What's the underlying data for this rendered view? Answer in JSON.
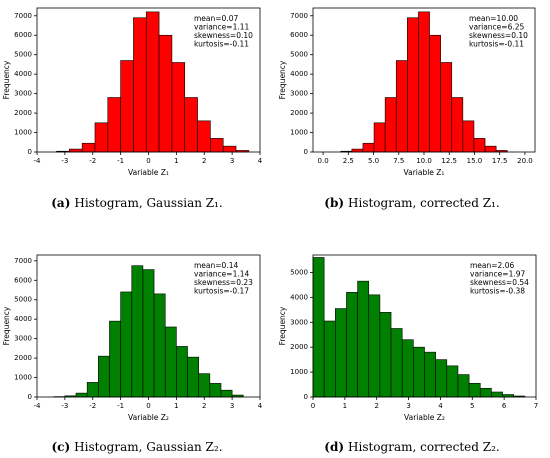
{
  "chart_data": [
    {
      "type": "histogram",
      "color": "#ff0000",
      "xlabel": "Variable Z₁",
      "ylabel": "Frequency",
      "caption_label": "(a)",
      "caption": "Histogram, Gaussian Z₁.",
      "annotations": [
        "mean=0.07",
        "variance=1.11",
        "skewness=0.10",
        "kurtosis=-0.11"
      ],
      "bins": [
        -3.3,
        -2.84,
        -2.38,
        -1.92,
        -1.46,
        -1.0,
        -0.54,
        -0.08,
        0.38,
        0.84,
        1.3,
        1.76,
        2.22,
        2.68,
        3.14,
        3.6
      ],
      "counts": [
        40,
        150,
        450,
        1500,
        2800,
        4700,
        6900,
        7200,
        6000,
        4600,
        2800,
        1600,
        700,
        300,
        80
      ],
      "xlim": [
        -4,
        4
      ],
      "xticks": [
        -4,
        -3,
        -2,
        -1,
        0,
        1,
        2,
        3,
        4
      ],
      "ylim": [
        0,
        7400
      ],
      "yticks": [
        0,
        1000,
        2000,
        3000,
        4000,
        5000,
        6000,
        7000
      ]
    },
    {
      "type": "histogram",
      "color": "#ff0000",
      "xlabel": "Variable Z₁",
      "ylabel": "Frequency",
      "caption_label": "(b)",
      "caption": "Histogram, corrected Z₁.",
      "annotations": [
        "mean=10.00",
        "variance=6.25",
        "skewness=0.10",
        "kurtosis=-0.11"
      ],
      "bins": [
        1.75,
        2.85,
        3.95,
        5.05,
        6.15,
        7.25,
        8.35,
        9.45,
        10.55,
        11.65,
        12.75,
        13.85,
        14.95,
        16.05,
        17.15,
        18.25
      ],
      "counts": [
        40,
        150,
        450,
        1500,
        2800,
        4700,
        6900,
        7200,
        6000,
        4600,
        2800,
        1600,
        700,
        300,
        80
      ],
      "xlim": [
        -1,
        21
      ],
      "xticks": [
        {
          "value": 0,
          "label": "0.0"
        },
        2.5,
        {
          "value": 5,
          "label": "5.0"
        },
        7.5,
        {
          "value": 10,
          "label": "10.0"
        },
        12.5,
        {
          "value": 15,
          "label": "15.0"
        },
        17.5,
        {
          "value": 20,
          "label": "20.0"
        }
      ],
      "ylim": [
        0,
        7400
      ],
      "yticks": [
        0,
        1000,
        2000,
        3000,
        4000,
        5000,
        6000,
        7000
      ]
    },
    {
      "type": "histogram",
      "color": "#008000",
      "xlabel": "Variable Z₂",
      "ylabel": "Frequency",
      "caption_label": "(c)",
      "caption": "Histogram, Gaussian Z₂.",
      "annotations": [
        "mean=0.14",
        "variance=1.14",
        "skewness=0.23",
        "kurtosis=-0.17"
      ],
      "bins": [
        -3.4,
        -3.0,
        -2.6,
        -2.2,
        -1.8,
        -1.4,
        -1.0,
        -0.6,
        -0.2,
        0.2,
        0.6,
        1.0,
        1.4,
        1.8,
        2.2,
        2.6,
        3.0,
        3.4
      ],
      "counts": [
        20,
        60,
        200,
        750,
        2100,
        3900,
        5400,
        6750,
        6550,
        5300,
        3600,
        2600,
        2050,
        1200,
        700,
        350,
        100
      ],
      "xlim": [
        -4,
        4
      ],
      "xticks": [
        -4,
        -3,
        -2,
        -1,
        0,
        1,
        2,
        3,
        4
      ],
      "ylim": [
        0,
        7300
      ],
      "yticks": [
        0,
        1000,
        2000,
        3000,
        4000,
        5000,
        6000,
        7000
      ]
    },
    {
      "type": "histogram",
      "color": "#008000",
      "xlabel": "Variable Z₂",
      "ylabel": "Frequency",
      "caption_label": "(d)",
      "caption": "Histogram, corrected Z₂.",
      "annotations": [
        "mean=2.06",
        "variance=1.97",
        "skewness=0.54",
        "kurtosis=-0.38"
      ],
      "bins": [
        0,
        0.35,
        0.7,
        1.05,
        1.4,
        1.75,
        2.1,
        2.45,
        2.8,
        3.15,
        3.5,
        3.85,
        4.2,
        4.55,
        4.9,
        5.25,
        5.6,
        5.95,
        6.3,
        6.65
      ],
      "counts": [
        5600,
        3050,
        3550,
        4200,
        4650,
        4100,
        3400,
        2750,
        2300,
        2000,
        1800,
        1500,
        1250,
        900,
        550,
        350,
        200,
        100,
        40
      ],
      "xlim": [
        0,
        7
      ],
      "xticks": [
        0,
        1,
        2,
        3,
        4,
        5,
        6,
        7
      ],
      "ylim": [
        0,
        5700
      ],
      "yticks": [
        0,
        1000,
        2000,
        3000,
        4000,
        5000
      ]
    }
  ]
}
